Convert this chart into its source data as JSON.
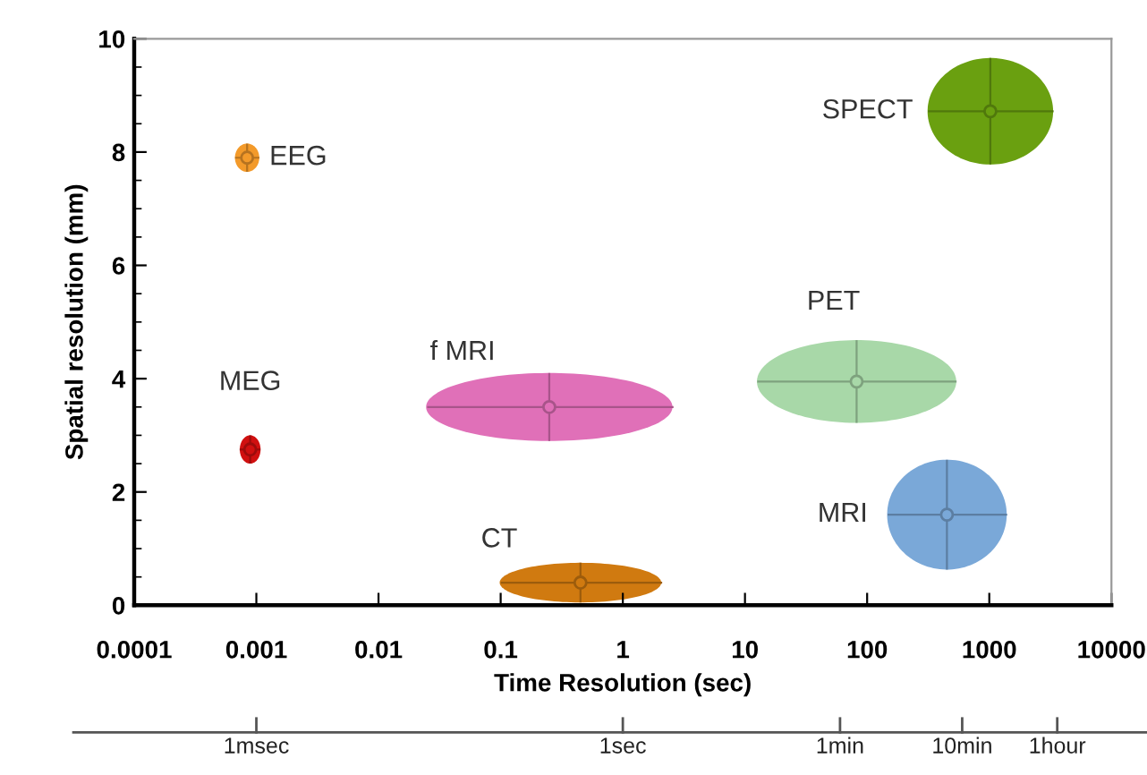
{
  "chart_data": {
    "type": "scatter",
    "xlabel": "Time Resolution (sec)",
    "ylabel": "Spatial resolution (mm)",
    "log": "x",
    "xlim": [
      0.0001,
      10000
    ],
    "xticks": [
      0.0001,
      0.001,
      0.01,
      0.1,
      1,
      10,
      100,
      1000,
      10000
    ],
    "ylim": [
      0,
      10
    ],
    "yticks": [
      0,
      2,
      4,
      6,
      8,
      10
    ],
    "grid": false,
    "ref_lines": [
      {
        "axis": "x",
        "value": 0.001,
        "label": "1msec"
      },
      {
        "axis": "x",
        "value": 1,
        "label": "1sec"
      },
      {
        "axis": "x",
        "value": 60,
        "label": "1min"
      },
      {
        "axis": "x",
        "value": 600,
        "label": "10min"
      },
      {
        "axis": "x",
        "value": 3600,
        "label": "1hour"
      }
    ],
    "series": [
      {
        "name": "EEG",
        "color": "#f39a2a",
        "x": [
          0.00084
        ],
        "values": [
          7.9
        ],
        "xerrors": [
          [
            0.00067,
            0.00106
          ]
        ],
        "errors": [
          0.25
        ]
      },
      {
        "name": "MEG",
        "color": "#d01010",
        "x": [
          0.00089
        ],
        "values": [
          2.75
        ],
        "xerrors": [
          [
            0.00073,
            0.00108
          ]
        ],
        "errors": [
          0.25
        ]
      },
      {
        "name": "f MRI",
        "color": "#e070b8",
        "x": [
          0.25
        ],
        "values": [
          3.5
        ],
        "xerrors": [
          [
            0.025,
            2.6
          ]
        ],
        "errors": [
          0.6
        ]
      },
      {
        "name": "CT",
        "color": "#d07a10",
        "x": [
          0.45
        ],
        "values": [
          0.4
        ],
        "xerrors": [
          [
            0.1,
            2.1
          ]
        ],
        "errors": [
          0.35
        ]
      },
      {
        "name": "PET",
        "color": "#a8d8a8",
        "x": [
          82
        ],
        "values": [
          3.95
        ],
        "xerrors": [
          [
            12.6,
            540
          ]
        ],
        "errors": [
          0.73
        ]
      },
      {
        "name": "MRI",
        "color": "#7aa8d8",
        "x": [
          450
        ],
        "values": [
          1.6
        ],
        "xerrors": [
          [
            147,
            1400
          ]
        ],
        "errors": [
          0.97
        ]
      },
      {
        "name": "SPECT",
        "color": "#6aa010",
        "x": [
          1020
        ],
        "values": [
          8.72
        ],
        "xerrors": [
          [
            315,
            3360
          ]
        ],
        "errors": [
          0.94
        ]
      }
    ]
  }
}
